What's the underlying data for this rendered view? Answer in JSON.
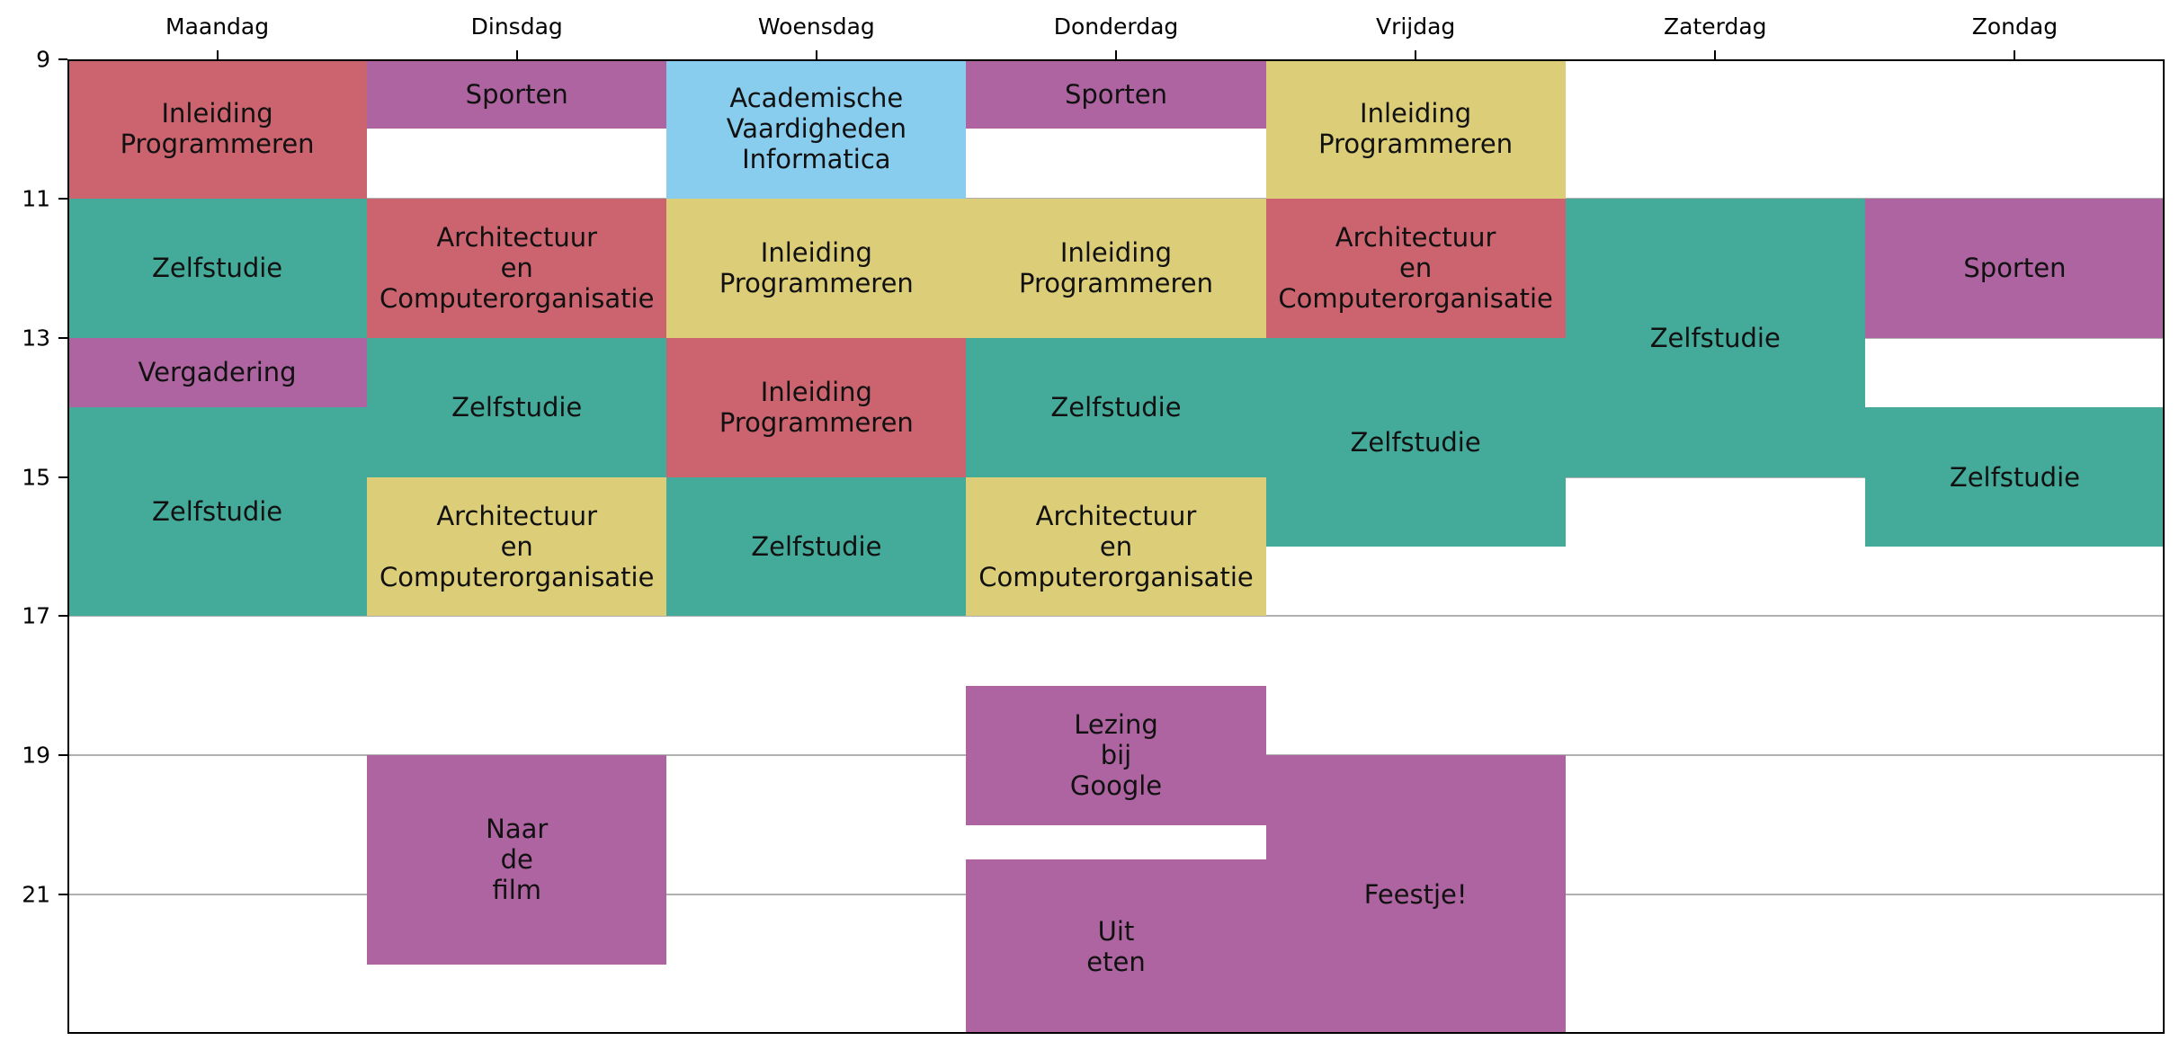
{
  "chart_data": {
    "type": "timetable",
    "days": [
      "Maandag",
      "Dinsdag",
      "Woensdag",
      "Donderdag",
      "Vrijdag",
      "Zaterdag",
      "Zondag"
    ],
    "y_ticks": [
      9,
      11,
      13,
      15,
      17,
      19,
      21
    ],
    "ylim": [
      9,
      23
    ],
    "grid": "horizontal at y ticks",
    "colors": {
      "red": "#cc6470",
      "purple": "#ad64a0",
      "blue": "#88cdee",
      "yellow": "#dccd78",
      "teal": "#44aa99"
    },
    "events": [
      {
        "day": 0,
        "start": 9,
        "end": 11,
        "label": "Inleiding\nProgrammeren",
        "color": "red"
      },
      {
        "day": 0,
        "start": 11,
        "end": 13,
        "label": "Zelfstudie",
        "color": "teal"
      },
      {
        "day": 0,
        "start": 13,
        "end": 14,
        "label": "Vergadering",
        "color": "purple"
      },
      {
        "day": 0,
        "start": 14,
        "end": 17,
        "label": "Zelfstudie",
        "color": "teal"
      },
      {
        "day": 1,
        "start": 9,
        "end": 10,
        "label": "Sporten",
        "color": "purple"
      },
      {
        "day": 1,
        "start": 11,
        "end": 13,
        "label": "Architectuur\nen\nComputerorganisatie",
        "color": "red"
      },
      {
        "day": 1,
        "start": 13,
        "end": 15,
        "label": "Zelfstudie",
        "color": "teal"
      },
      {
        "day": 1,
        "start": 15,
        "end": 17,
        "label": "Architectuur\nen\nComputerorganisatie",
        "color": "yellow"
      },
      {
        "day": 1,
        "start": 19,
        "end": 22,
        "label": "Naar\nde\nfilm",
        "color": "purple"
      },
      {
        "day": 2,
        "start": 9,
        "end": 11,
        "label": "Academische\nVaardigheden\nInformatica",
        "color": "blue"
      },
      {
        "day": 2,
        "start": 11,
        "end": 13,
        "label": "Inleiding\nProgrammeren",
        "color": "yellow"
      },
      {
        "day": 2,
        "start": 13,
        "end": 15,
        "label": "Inleiding\nProgrammeren",
        "color": "red"
      },
      {
        "day": 2,
        "start": 15,
        "end": 17,
        "label": "Zelfstudie",
        "color": "teal"
      },
      {
        "day": 3,
        "start": 9,
        "end": 10,
        "label": "Sporten",
        "color": "purple"
      },
      {
        "day": 3,
        "start": 11,
        "end": 13,
        "label": "Inleiding\nProgrammeren",
        "color": "yellow"
      },
      {
        "day": 3,
        "start": 13,
        "end": 15,
        "label": "Zelfstudie",
        "color": "teal"
      },
      {
        "day": 3,
        "start": 15,
        "end": 17,
        "label": "Architectuur\nen\nComputerorganisatie",
        "color": "yellow"
      },
      {
        "day": 3,
        "start": 18,
        "end": 20,
        "label": "Lezing\nbij\nGoogle",
        "color": "purple"
      },
      {
        "day": 3,
        "start": 20.5,
        "end": 23,
        "label": "Uit\neten",
        "color": "purple"
      },
      {
        "day": 4,
        "start": 9,
        "end": 11,
        "label": "Inleiding\nProgrammeren",
        "color": "yellow"
      },
      {
        "day": 4,
        "start": 11,
        "end": 13,
        "label": "Architectuur\nen\nComputerorganisatie",
        "color": "red"
      },
      {
        "day": 4,
        "start": 13,
        "end": 16,
        "label": "Zelfstudie",
        "color": "teal"
      },
      {
        "day": 4,
        "start": 19,
        "end": 23,
        "label": "Feestje!",
        "color": "purple"
      },
      {
        "day": 5,
        "start": 11,
        "end": 15,
        "label": "Zelfstudie",
        "color": "teal"
      },
      {
        "day": 6,
        "start": 11,
        "end": 13,
        "label": "Sporten",
        "color": "purple"
      },
      {
        "day": 6,
        "start": 14,
        "end": 16,
        "label": "Zelfstudie",
        "color": "teal"
      }
    ]
  }
}
